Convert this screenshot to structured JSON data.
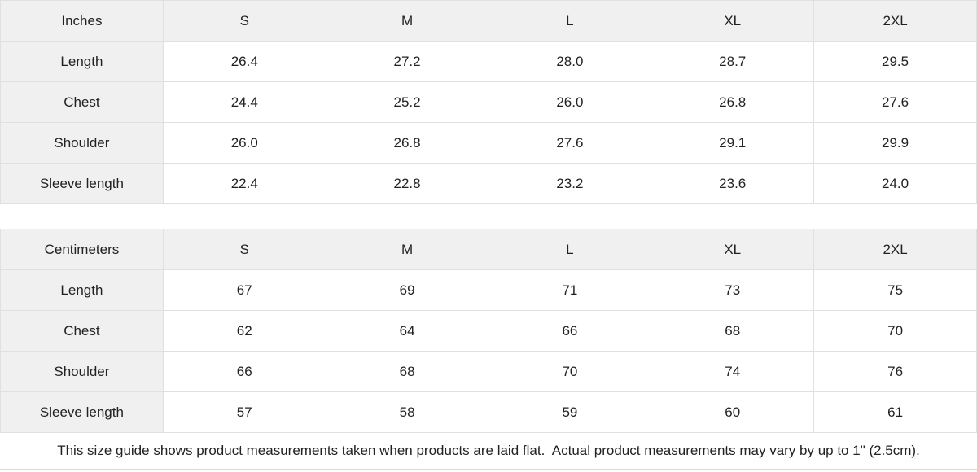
{
  "colors": {
    "header_bg": "#f0f0f0",
    "cell_bg": "#ffffff",
    "border": "#e0e0e0",
    "text": "#222222"
  },
  "tables": [
    {
      "unit_label": "Inches",
      "columns": [
        "S",
        "M",
        "L",
        "XL",
        "2XL"
      ],
      "rows": [
        {
          "label": "Length",
          "values": [
            "26.4",
            "27.2",
            "28.0",
            "28.7",
            "29.5"
          ]
        },
        {
          "label": "Chest",
          "values": [
            "24.4",
            "25.2",
            "26.0",
            "26.8",
            "27.6"
          ]
        },
        {
          "label": "Shoulder",
          "values": [
            "26.0",
            "26.8",
            "27.6",
            "29.1",
            "29.9"
          ]
        },
        {
          "label": "Sleeve length",
          "values": [
            "22.4",
            "22.8",
            "23.2",
            "23.6",
            "24.0"
          ]
        }
      ]
    },
    {
      "unit_label": "Centimeters",
      "columns": [
        "S",
        "M",
        "L",
        "XL",
        "2XL"
      ],
      "rows": [
        {
          "label": "Length",
          "values": [
            "67",
            "69",
            "71",
            "73",
            "75"
          ]
        },
        {
          "label": "Chest",
          "values": [
            "62",
            "64",
            "66",
            "68",
            "70"
          ]
        },
        {
          "label": "Shoulder",
          "values": [
            "66",
            "68",
            "70",
            "74",
            "76"
          ]
        },
        {
          "label": "Sleeve length",
          "values": [
            "57",
            "58",
            "59",
            "60",
            "61"
          ]
        }
      ]
    }
  ],
  "footer": {
    "note": "This size guide shows product measurements taken when products are laid flat.  Actual product measurements may vary by up to 1\" (2.5cm)."
  }
}
